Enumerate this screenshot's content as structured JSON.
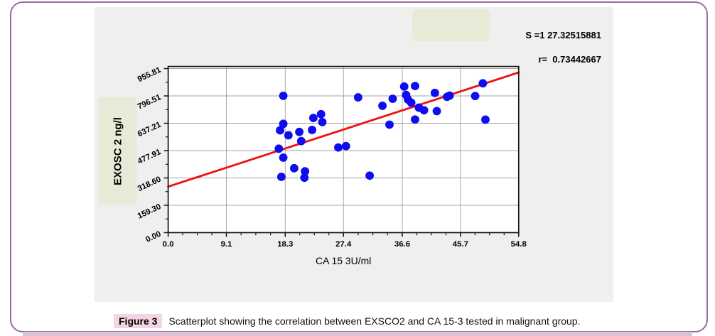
{
  "figure": {
    "caption_label": "Figure 3",
    "caption_text": "Scatterplot showing the correlation between EXSCO2 and CA 15-3 tested in malignant group."
  },
  "stats": {
    "line1": "S =1 27.32515881",
    "line2": "r=  0.73442667"
  },
  "chart_data": {
    "type": "scatter",
    "xlabel": "CA 15  3U/ml",
    "ylabel": "EXOSC 2 ng/l",
    "xlim": [
      0,
      54.8
    ],
    "ylim": [
      0,
      968
    ],
    "x_ticks": [
      0.0,
      9.1,
      18.3,
      27.4,
      36.6,
      45.7,
      54.8
    ],
    "x_tick_labels": [
      "0.0",
      "9.1",
      "18.3",
      "27.4",
      "36.6",
      "45.7",
      "54.8"
    ],
    "y_ticks": [
      0,
      159.3,
      318.6,
      477.91,
      637.21,
      796.51,
      955.81
    ],
    "y_tick_labels": [
      "0.00",
      "159.30",
      "318.60",
      "477.91",
      "637.21",
      "796.51",
      "955.81"
    ],
    "grid": true,
    "legend": "none",
    "correlation_r": 0.73442667,
    "regression_line": {
      "x": [
        0,
        54.8
      ],
      "y": [
        268,
        933
      ]
    },
    "points": [
      [
        18.0,
        797
      ],
      [
        29.7,
        788
      ],
      [
        33.5,
        739
      ],
      [
        36.9,
        851
      ],
      [
        38.6,
        854
      ],
      [
        49.2,
        870
      ],
      [
        48.0,
        796
      ],
      [
        41.7,
        814
      ],
      [
        43.6,
        791
      ],
      [
        44.0,
        798
      ],
      [
        35.1,
        780
      ],
      [
        37.2,
        802
      ],
      [
        37.5,
        775
      ],
      [
        38.0,
        757
      ],
      [
        39.2,
        728
      ],
      [
        40.0,
        713
      ],
      [
        42.0,
        708
      ],
      [
        38.6,
        659
      ],
      [
        34.6,
        629
      ],
      [
        49.6,
        658
      ],
      [
        23.9,
        690
      ],
      [
        24.1,
        644
      ],
      [
        22.7,
        668
      ],
      [
        22.5,
        598
      ],
      [
        20.5,
        587
      ],
      [
        18.8,
        567
      ],
      [
        17.5,
        596
      ],
      [
        18.0,
        634
      ],
      [
        20.8,
        533
      ],
      [
        17.3,
        489
      ],
      [
        18.0,
        437
      ],
      [
        26.6,
        496
      ],
      [
        27.8,
        504
      ],
      [
        19.7,
        375
      ],
      [
        21.4,
        357
      ],
      [
        21.3,
        320
      ],
      [
        17.7,
        325
      ],
      [
        31.5,
        332
      ]
    ],
    "colors": {
      "point": "#0d0df0",
      "line": "#ee1313",
      "grid": "#a3a3a3",
      "frame": "#141414"
    }
  }
}
